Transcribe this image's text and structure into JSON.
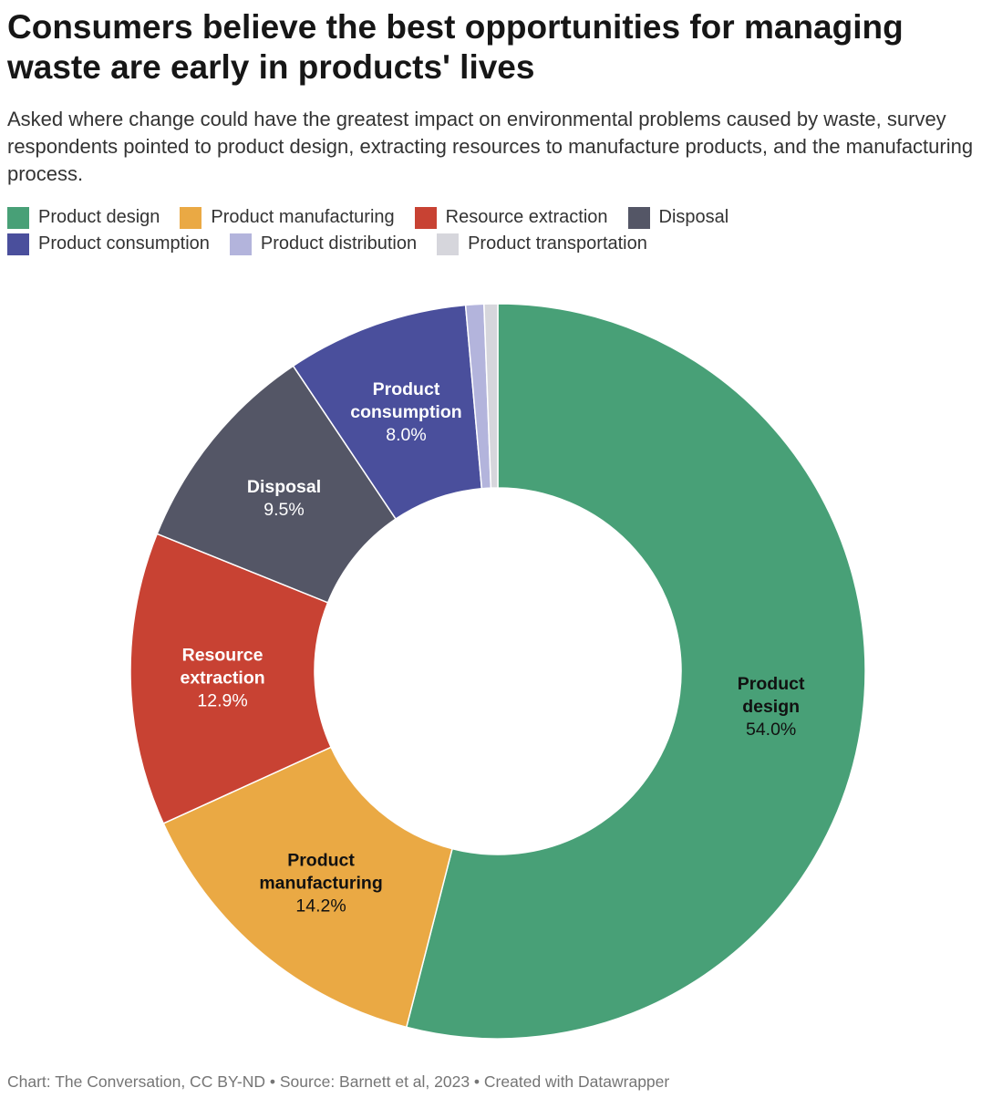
{
  "title": "Consumers believe the best opportunities for managing waste are early in products' lives",
  "subtitle": "Asked where change could have the greatest impact on environmental problems caused by waste, survey respondents pointed to product design, extracting resources to manufacture products, and the manufacturing process.",
  "footer": "Chart: The Conversation, CC BY-ND • Source: Barnett et al, 2023 • Created with Datawrapper",
  "chart_data": {
    "type": "pie",
    "donut": true,
    "legend_position": "top",
    "slices": [
      {
        "name": "Product design",
        "value": 54.0,
        "label_lines": [
          "Product",
          "design"
        ],
        "value_label": "54.0%",
        "color": "#48a077",
        "text_color": "#111111"
      },
      {
        "name": "Product manufacturing",
        "value": 14.2,
        "label_lines": [
          "Product",
          "manufacturing"
        ],
        "value_label": "14.2%",
        "color": "#eaa944",
        "text_color": "#111111"
      },
      {
        "name": "Resource extraction",
        "value": 12.9,
        "label_lines": [
          "Resource",
          "extraction"
        ],
        "value_label": "12.9%",
        "color": "#c84233",
        "text_color": "#ffffff"
      },
      {
        "name": "Disposal",
        "value": 9.5,
        "label_lines": [
          "Disposal"
        ],
        "value_label": "9.5%",
        "color": "#545666",
        "text_color": "#ffffff"
      },
      {
        "name": "Product consumption",
        "value": 8.0,
        "label_lines": [
          "Product",
          "consumption"
        ],
        "value_label": "8.0%",
        "color": "#4a4f9c",
        "text_color": "#ffffff"
      },
      {
        "name": "Product distribution",
        "value": 0.8,
        "label_lines": [],
        "value_label": "",
        "color": "#b3b4dc",
        "text_color": "#111111"
      },
      {
        "name": "Product transportation",
        "value": 0.6,
        "label_lines": [],
        "value_label": "",
        "color": "#d6d6dc",
        "text_color": "#111111"
      }
    ],
    "legend_rows": [
      [
        "Product design",
        "Product manufacturing",
        "Resource extraction",
        "Disposal"
      ],
      [
        "Product consumption",
        "Product distribution",
        "Product transportation"
      ]
    ]
  }
}
